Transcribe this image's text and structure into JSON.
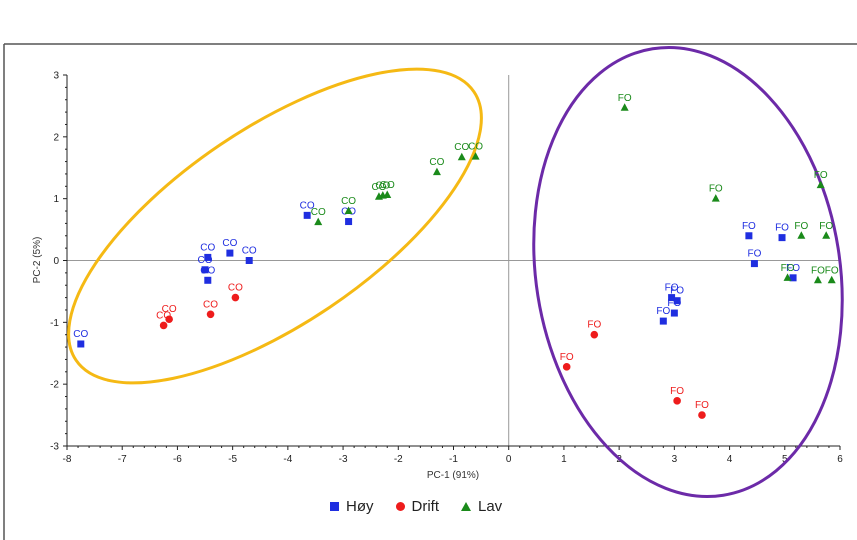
{
  "chart_data": {
    "type": "scatter",
    "xlabel": "PC-1 (91%)",
    "ylabel": "PC-2 (5%)",
    "xlim": [
      -8,
      6
    ],
    "ylim": [
      -3,
      3
    ],
    "xticks": [
      -8,
      -7,
      -6,
      -5,
      -4,
      -3,
      -2,
      -1,
      0,
      1,
      2,
      3,
      4,
      5,
      6
    ],
    "yticks": [
      -3,
      -2,
      -1,
      0,
      1,
      2,
      3
    ],
    "grid": false,
    "legend_position": "bottom-center",
    "series": [
      {
        "name": "Høy",
        "marker": "square",
        "color": "#1f2ee0",
        "points": [
          {
            "x": -7.75,
            "y": -1.35,
            "label": "CO"
          },
          {
            "x": -5.5,
            "y": -0.15,
            "label": "CO"
          },
          {
            "x": -5.45,
            "y": 0.05,
            "label": "CO"
          },
          {
            "x": -5.45,
            "y": -0.32,
            "label": "CO"
          },
          {
            "x": -5.05,
            "y": 0.12,
            "label": "CO"
          },
          {
            "x": -4.7,
            "y": 0.0,
            "label": "CO"
          },
          {
            "x": -3.65,
            "y": 0.73,
            "label": "CO"
          },
          {
            "x": -2.9,
            "y": 0.63,
            "label": "CO"
          },
          {
            "x": 2.8,
            "y": -0.98,
            "label": "FO"
          },
          {
            "x": 2.95,
            "y": -0.6,
            "label": "FO"
          },
          {
            "x": 3.0,
            "y": -0.85,
            "label": "FO"
          },
          {
            "x": 3.05,
            "y": -0.65,
            "label": "FO"
          },
          {
            "x": 4.35,
            "y": 0.4,
            "label": "FO"
          },
          {
            "x": 4.45,
            "y": -0.05,
            "label": "FO"
          },
          {
            "x": 4.95,
            "y": 0.37,
            "label": "FO"
          },
          {
            "x": 5.15,
            "y": -0.28,
            "label": "FO"
          }
        ]
      },
      {
        "name": "Drift",
        "marker": "circle",
        "color": "#ee1c1c",
        "points": [
          {
            "x": -6.25,
            "y": -1.05,
            "label": "CO"
          },
          {
            "x": -6.15,
            "y": -0.95,
            "label": "CO"
          },
          {
            "x": -5.4,
            "y": -0.87,
            "label": "CO"
          },
          {
            "x": -4.95,
            "y": -0.6,
            "label": "CO"
          },
          {
            "x": 1.05,
            "y": -1.72,
            "label": "FO"
          },
          {
            "x": 1.55,
            "y": -1.2,
            "label": "FO"
          },
          {
            "x": 3.05,
            "y": -2.27,
            "label": "FO"
          },
          {
            "x": 3.5,
            "y": -2.5,
            "label": "FO"
          }
        ]
      },
      {
        "name": "Lav",
        "marker": "triangle",
        "color": "#1a8a1a",
        "points": [
          {
            "x": -3.45,
            "y": 0.62,
            "label": "CO"
          },
          {
            "x": -2.9,
            "y": 0.8,
            "label": "CO"
          },
          {
            "x": -2.35,
            "y": 1.03,
            "label": "CO"
          },
          {
            "x": -2.28,
            "y": 1.05,
            "label": "CO"
          },
          {
            "x": -2.2,
            "y": 1.06,
            "label": "CO"
          },
          {
            "x": -1.3,
            "y": 1.43,
            "label": "CO"
          },
          {
            "x": -0.85,
            "y": 1.67,
            "label": "CO"
          },
          {
            "x": -0.6,
            "y": 1.68,
            "label": "CO"
          },
          {
            "x": 2.1,
            "y": 2.47,
            "label": "FO"
          },
          {
            "x": 3.75,
            "y": 1.0,
            "label": "FO"
          },
          {
            "x": 5.05,
            "y": -0.28,
            "label": "FO"
          },
          {
            "x": 5.3,
            "y": 0.4,
            "label": "FO"
          },
          {
            "x": 5.6,
            "y": -0.32,
            "label": "FO"
          },
          {
            "x": 5.65,
            "y": 1.22,
            "label": "FO"
          },
          {
            "x": 5.75,
            "y": 0.4,
            "label": "FO"
          },
          {
            "x": 5.85,
            "y": -0.32,
            "label": "FO"
          }
        ]
      }
    ],
    "ellipse_colors": {
      "co_group": "#f5b914",
      "fo_group": "#6c2aa8"
    }
  }
}
